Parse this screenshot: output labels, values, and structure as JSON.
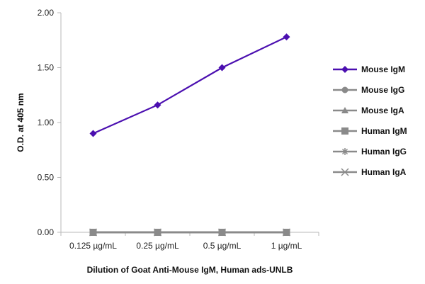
{
  "chart_data": {
    "type": "line",
    "title": "",
    "xlabel": "Dilution of Goat Anti-Mouse IgM, Human ads-UNLB",
    "ylabel": "O.D. at 405 nm",
    "categories": [
      "0.125 µg/mL",
      "0.25 µg/mL",
      "0.5 µg/mL",
      "1 µg/mL"
    ],
    "ylim": [
      0,
      2.0
    ],
    "yticks": [
      "0.00",
      "0.50",
      "1.00",
      "1.50",
      "2.00"
    ],
    "grid": false,
    "legend_position": "right",
    "series": [
      {
        "name": "Mouse IgM",
        "values": [
          0.9,
          1.16,
          1.5,
          1.78
        ],
        "color": "#4B0FB0",
        "marker": "diamond"
      },
      {
        "name": "Mouse IgG",
        "values": [
          0.0,
          0.0,
          0.0,
          0.0
        ],
        "color": "#8A8A8A",
        "marker": "circle"
      },
      {
        "name": "Mouse IgA",
        "values": [
          0.0,
          0.0,
          0.0,
          0.0
        ],
        "color": "#8A8A8A",
        "marker": "triangle"
      },
      {
        "name": "Human IgM",
        "values": [
          0.0,
          0.0,
          0.0,
          0.0
        ],
        "color": "#8A8A8A",
        "marker": "square"
      },
      {
        "name": "Human IgG",
        "values": [
          0.0,
          0.0,
          0.0,
          0.0
        ],
        "color": "#8A8A8A",
        "marker": "asterisk"
      },
      {
        "name": "Human IgA",
        "values": [
          0.0,
          0.0,
          0.0,
          0.0
        ],
        "color": "#8A8A8A",
        "marker": "x"
      }
    ]
  }
}
